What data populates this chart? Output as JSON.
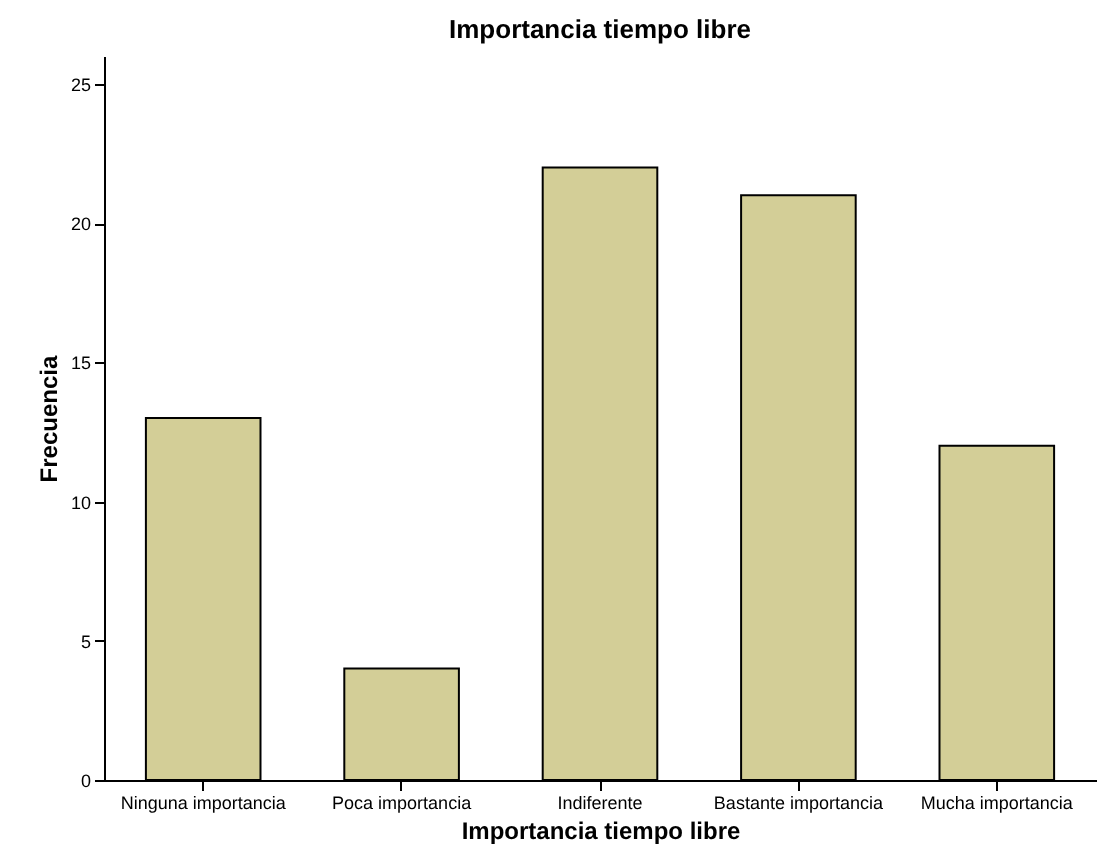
{
  "chart_data": {
    "type": "bar",
    "title": "Importancia tiempo libre",
    "xlabel": "Importancia tiempo libre",
    "ylabel": "Frecuencia",
    "categories": [
      "Ninguna importancia",
      "Poca importancia",
      "Indiferente",
      "Bastante importancia",
      "Mucha importancia"
    ],
    "values": [
      13,
      4,
      22,
      21,
      12
    ],
    "color": "#d3ce97",
    "ylim": [
      0,
      26
    ],
    "yticks": [
      0,
      5,
      10,
      15,
      20,
      25
    ],
    "grid": false
  }
}
